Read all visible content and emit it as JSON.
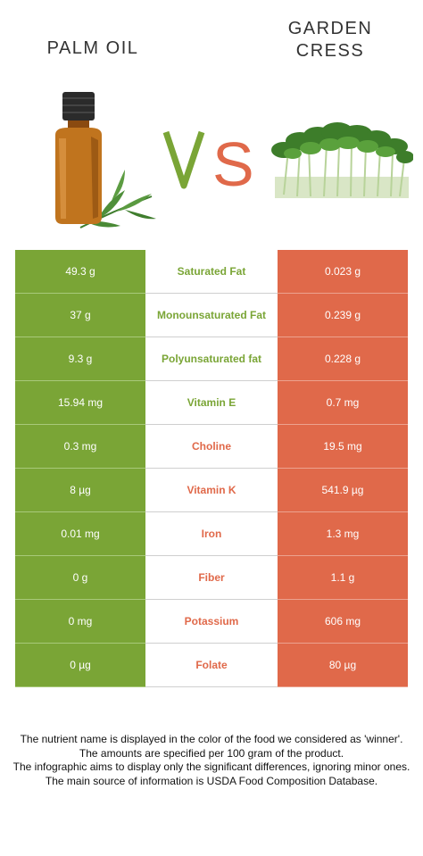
{
  "foods": {
    "left": {
      "name": "PALM OIL",
      "color": "#7aa536",
      "image_icon": "oil-bottle-illustration"
    },
    "right": {
      "name": "GARDEN\nCRESS",
      "color": "#e0694a",
      "image_icon": "garden-cress-illustration"
    }
  },
  "vs_label": "VS",
  "rows": [
    {
      "nutrient": "Saturated Fat",
      "left": "49.3 g",
      "right": "0.023 g",
      "winner": "left"
    },
    {
      "nutrient": "Monounsaturated Fat",
      "left": "37 g",
      "right": "0.239 g",
      "winner": "left"
    },
    {
      "nutrient": "Polyunsaturated fat",
      "left": "9.3 g",
      "right": "0.228 g",
      "winner": "left"
    },
    {
      "nutrient": "Vitamin E",
      "left": "15.94 mg",
      "right": "0.7 mg",
      "winner": "left"
    },
    {
      "nutrient": "Choline",
      "left": "0.3 mg",
      "right": "19.5 mg",
      "winner": "right"
    },
    {
      "nutrient": "Vitamin K",
      "left": "8 µg",
      "right": "541.9 µg",
      "winner": "right"
    },
    {
      "nutrient": "Iron",
      "left": "0.01 mg",
      "right": "1.3 mg",
      "winner": "right"
    },
    {
      "nutrient": "Fiber",
      "left": "0 g",
      "right": "1.1 g",
      "winner": "right"
    },
    {
      "nutrient": "Potassium",
      "left": "0 mg",
      "right": "606 mg",
      "winner": "right"
    },
    {
      "nutrient": "Folate",
      "left": "0 µg",
      "right": "80 µg",
      "winner": "right"
    }
  ],
  "footnote": [
    "The nutrient name is displayed in the color of the food we considered as 'winner'.",
    "The amounts are specified per 100 gram of the product.",
    "The infographic aims to display only the significant differences, ignoring minor ones.",
    "The main source of information is USDA Food Composition Database."
  ]
}
